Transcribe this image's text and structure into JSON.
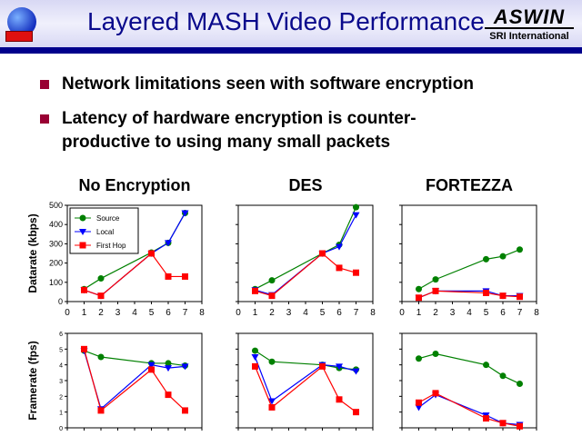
{
  "header": {
    "title": "Layered MASH Video Performance",
    "logo_main": "ASWIN",
    "logo_sub": "SRI International"
  },
  "bullets": [
    "Network limitations seen with software encryption",
    "Latency of hardware encryption is counter-",
    "productive to using many small packets"
  ],
  "colors": {
    "source": "#008000",
    "local": "#0000ff",
    "first_hop": "#ff0000"
  },
  "chart_data": [
    {
      "type": "line",
      "title": "No Encryption",
      "ylabel": "Datarate (kbps)",
      "x": [
        1,
        2,
        5,
        6,
        7
      ],
      "xlim": [
        0,
        8
      ],
      "ylim": [
        0,
        500
      ],
      "yticks": [
        0,
        100,
        200,
        300,
        400,
        500
      ],
      "legend": "top-left",
      "series": [
        {
          "name": "Source",
          "values": [
            65,
            120,
            255,
            305,
            460
          ]
        },
        {
          "name": "Local",
          "values": [
            60,
            30,
            250,
            305,
            460
          ]
        },
        {
          "name": "First Hop",
          "values": [
            60,
            30,
            250,
            130,
            130
          ]
        }
      ]
    },
    {
      "type": "line",
      "title": "DES",
      "x": [
        1,
        2,
        5,
        6,
        7
      ],
      "xlim": [
        0,
        8
      ],
      "ylim": [
        0,
        500
      ],
      "series": [
        {
          "name": "Source",
          "values": [
            65,
            110,
            250,
            295,
            490
          ]
        },
        {
          "name": "Local",
          "values": [
            60,
            35,
            250,
            285,
            450
          ]
        },
        {
          "name": "First Hop",
          "values": [
            55,
            30,
            250,
            175,
            150
          ]
        }
      ]
    },
    {
      "type": "line",
      "title": "FORTEZZA",
      "x": [
        1,
        2,
        5,
        6,
        7
      ],
      "xlim": [
        0,
        8
      ],
      "ylim": [
        0,
        500
      ],
      "series": [
        {
          "name": "Source",
          "values": [
            65,
            115,
            220,
            235,
            270
          ]
        },
        {
          "name": "Local",
          "values": [
            20,
            55,
            55,
            30,
            30
          ]
        },
        {
          "name": "First Hop",
          "values": [
            20,
            55,
            45,
            30,
            25
          ]
        }
      ]
    },
    {
      "type": "line",
      "ylabel": "Framerate (fps)",
      "x": [
        1,
        2,
        5,
        6,
        7
      ],
      "xlim": [
        0,
        8
      ],
      "ylim": [
        0,
        6
      ],
      "yticks": [
        0,
        1,
        2,
        3,
        4,
        5,
        6
      ],
      "series": [
        {
          "name": "Source",
          "values": [
            4.9,
            4.5,
            4.1,
            4.1,
            3.95
          ]
        },
        {
          "name": "Local",
          "values": [
            4.9,
            1.2,
            4.0,
            3.8,
            3.9
          ]
        },
        {
          "name": "First Hop",
          "values": [
            5.0,
            1.1,
            3.7,
            2.1,
            1.1
          ]
        }
      ]
    },
    {
      "type": "line",
      "x": [
        1,
        2,
        5,
        6,
        7
      ],
      "xlim": [
        0,
        8
      ],
      "ylim": [
        0,
        6
      ],
      "series": [
        {
          "name": "Source",
          "values": [
            4.9,
            4.2,
            4.0,
            3.8,
            3.7
          ]
        },
        {
          "name": "Local",
          "values": [
            4.5,
            1.7,
            4.0,
            3.9,
            3.6
          ]
        },
        {
          "name": "First Hop",
          "values": [
            3.9,
            1.3,
            3.9,
            1.8,
            1.0
          ]
        }
      ]
    },
    {
      "type": "line",
      "x": [
        1,
        2,
        5,
        6,
        7
      ],
      "xlim": [
        0,
        8
      ],
      "ylim": [
        0,
        6
      ],
      "series": [
        {
          "name": "Source",
          "values": [
            4.4,
            4.7,
            4.0,
            3.3,
            2.8
          ]
        },
        {
          "name": "Local",
          "values": [
            1.3,
            2.1,
            0.8,
            0.3,
            0.2
          ]
        },
        {
          "name": "First Hop",
          "values": [
            1.6,
            2.2,
            0.6,
            0.3,
            0.1
          ]
        }
      ]
    }
  ]
}
